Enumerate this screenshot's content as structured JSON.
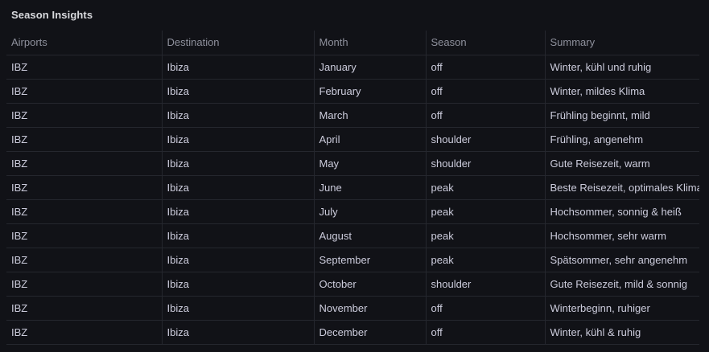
{
  "panel": {
    "title": "Season Insights"
  },
  "table": {
    "columns": [
      "Airports",
      "Destination",
      "Month",
      "Season",
      "Summary"
    ],
    "rows": [
      [
        "IBZ",
        "Ibiza",
        "January",
        "off",
        "Winter, kühl und ruhig"
      ],
      [
        "IBZ",
        "Ibiza",
        "February",
        "off",
        "Winter, mildes Klima"
      ],
      [
        "IBZ",
        "Ibiza",
        "March",
        "off",
        "Frühling beginnt, mild"
      ],
      [
        "IBZ",
        "Ibiza",
        "April",
        "shoulder",
        "Frühling, angenehm"
      ],
      [
        "IBZ",
        "Ibiza",
        "May",
        "shoulder",
        "Gute Reisezeit, warm"
      ],
      [
        "IBZ",
        "Ibiza",
        "June",
        "peak",
        "Beste Reisezeit, optimales Klima"
      ],
      [
        "IBZ",
        "Ibiza",
        "July",
        "peak",
        "Hochsommer, sonnig & heiß"
      ],
      [
        "IBZ",
        "Ibiza",
        "August",
        "peak",
        "Hochsommer, sehr warm"
      ],
      [
        "IBZ",
        "Ibiza",
        "September",
        "peak",
        "Spätsommer, sehr angenehm"
      ],
      [
        "IBZ",
        "Ibiza",
        "October",
        "shoulder",
        "Gute Reisezeit, mild & sonnig"
      ],
      [
        "IBZ",
        "Ibiza",
        "November",
        "off",
        "Winterbeginn, ruhiger"
      ],
      [
        "IBZ",
        "Ibiza",
        "December",
        "off",
        "Winter, kühl & ruhig"
      ]
    ]
  },
  "colors": {
    "background": "#111217",
    "grid_border": "#25272e",
    "title_text": "#d8d9dd",
    "header_text": "#8e909c",
    "body_text": "#ccccdc"
  }
}
